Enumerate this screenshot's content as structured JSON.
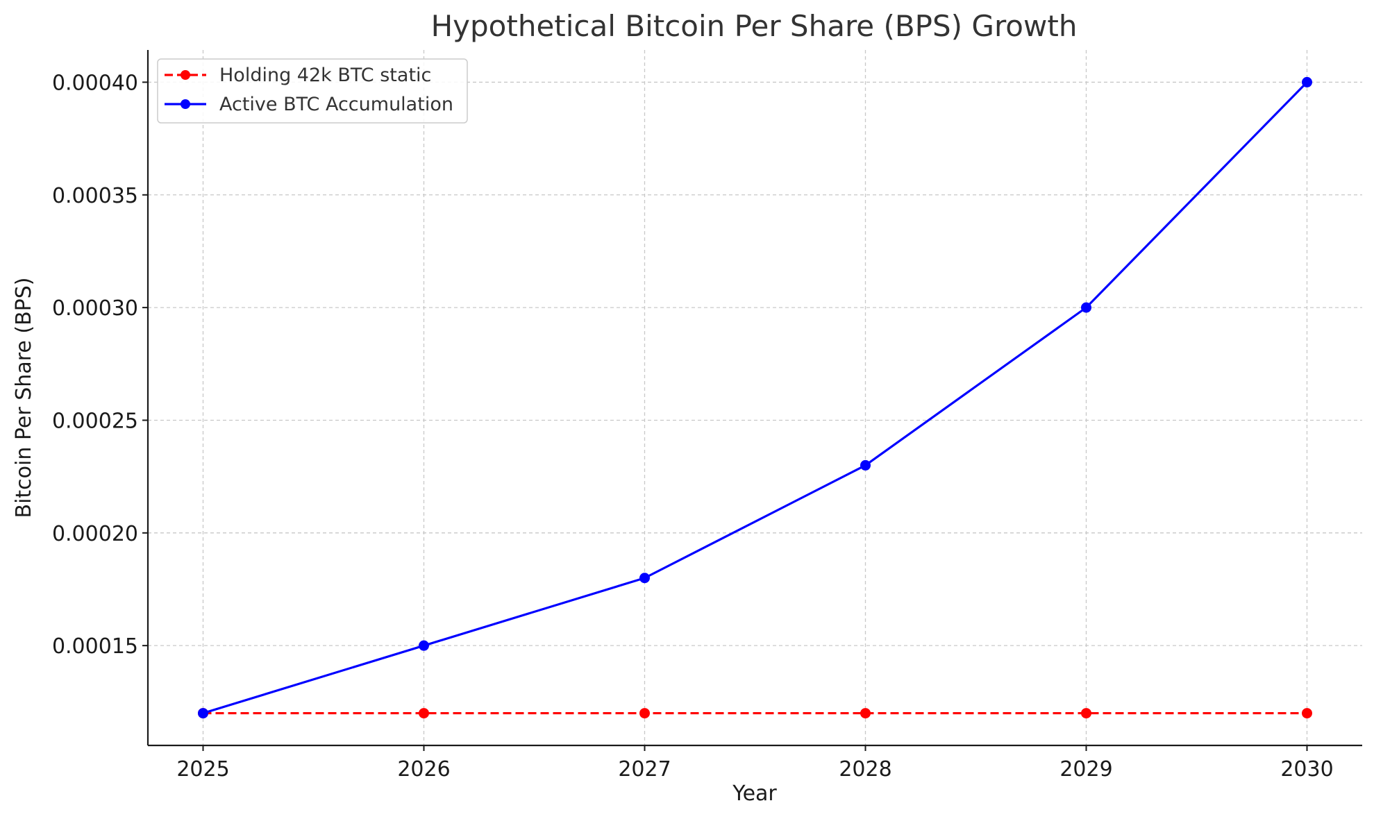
{
  "chart_data": {
    "type": "line",
    "title": "Hypothetical Bitcoin Per Share (BPS) Growth",
    "xlabel": "Year",
    "ylabel": "Bitcoin Per Share (BPS)",
    "x": [
      2025,
      2026,
      2027,
      2028,
      2029,
      2030
    ],
    "x_ticks": [
      "2025",
      "2026",
      "2027",
      "2028",
      "2029",
      "2030"
    ],
    "y_ticks": [
      {
        "value": 0.00015,
        "label": "0.00015"
      },
      {
        "value": 0.0002,
        "label": "0.00020"
      },
      {
        "value": 0.00025,
        "label": "0.00025"
      },
      {
        "value": 0.0003,
        "label": "0.00030"
      },
      {
        "value": 0.00035,
        "label": "0.00035"
      },
      {
        "value": 0.0004,
        "label": "0.00040"
      }
    ],
    "xlim": [
      2024.75,
      2030.25
    ],
    "ylim": [
      0.0001057,
      0.0004143
    ],
    "grid": true,
    "legend_position": "top-left",
    "series": [
      {
        "name": "Holding 42k BTC static",
        "values": [
          0.00012,
          0.00012,
          0.00012,
          0.00012,
          0.00012,
          0.00012
        ],
        "color": "#ff0000",
        "line_style": "dashed",
        "marker": "circle"
      },
      {
        "name": "Active BTC Accumulation",
        "values": [
          0.00012,
          0.00015,
          0.00018,
          0.00023,
          0.0003,
          0.0004
        ],
        "color": "#0000ff",
        "line_style": "solid",
        "marker": "circle"
      }
    ]
  }
}
